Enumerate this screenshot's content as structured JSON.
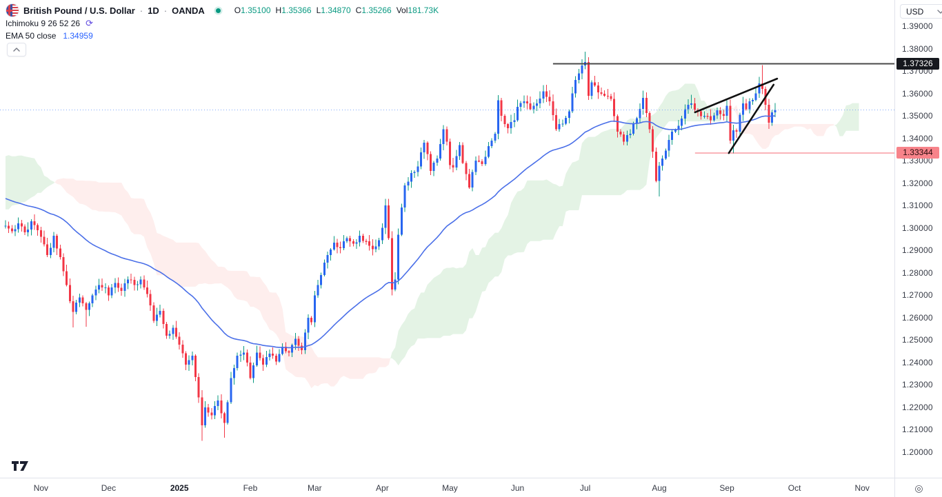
{
  "header": {
    "symbol_title": "British Pound / U.S. Dollar",
    "separator": "·",
    "timeframe": "1D",
    "exchange": "OANDA",
    "ohlc": {
      "o_label": "O",
      "o": "1.35100",
      "h_label": "H",
      "h": "1.35366",
      "l_label": "L",
      "l": "1.34870",
      "c_label": "C",
      "c": "1.35266",
      "vol_label": "Vol",
      "vol": "181.73K"
    },
    "indicators": [
      {
        "name": "Ichimoku 9 26 52 26"
      },
      {
        "name": "EMA 50 close",
        "value": "1.34959"
      }
    ]
  },
  "top_right": {
    "currency": "USD"
  },
  "bottom_right_icon": "◎",
  "colors": {
    "up_body": "#2765f0",
    "up_wick": "#089981",
    "down_body": "#f23645",
    "down_wick": "#f23645",
    "ema": "#4a6fe8",
    "cloud_bull": "rgba(76,175,80,0.15)",
    "cloud_bear": "rgba(244,67,54,0.09)",
    "last_price_line": "#7da6f9",
    "resistance_line": "#4a4a4a",
    "support_line": "rgba(242,54,69,0.5)",
    "trendline": "#111111",
    "accent_teal": "#089981",
    "accent_blue": "#2962FF"
  },
  "chart_data": {
    "type": "candlestick",
    "symbol": "GBPUSD",
    "timeframe": "1D",
    "ylim": [
      1.2,
      1.39
    ],
    "y_ticks": [
      {
        "label": "1.39000",
        "price": 1.39
      },
      {
        "label": "1.38000",
        "price": 1.38
      },
      {
        "label": "1.37000",
        "price": 1.37
      },
      {
        "label": "1.36000",
        "price": 1.36
      },
      {
        "label": "1.35000",
        "price": 1.35
      },
      {
        "label": "1.34000",
        "price": 1.34
      },
      {
        "label": "1.33000",
        "price": 1.33
      },
      {
        "label": "1.32000",
        "price": 1.32
      },
      {
        "label": "1.31000",
        "price": 1.31
      },
      {
        "label": "1.30000",
        "price": 1.3
      },
      {
        "label": "1.29000",
        "price": 1.29
      },
      {
        "label": "1.28000",
        "price": 1.28
      },
      {
        "label": "1.27000",
        "price": 1.27
      },
      {
        "label": "1.26000",
        "price": 1.26
      },
      {
        "label": "1.25000",
        "price": 1.25
      },
      {
        "label": "1.24000",
        "price": 1.24
      },
      {
        "label": "1.23000",
        "price": 1.23
      },
      {
        "label": "1.22000",
        "price": 1.22
      },
      {
        "label": "1.21000",
        "price": 1.21
      },
      {
        "label": "1.20000",
        "price": 1.2
      }
    ],
    "x_labels": [
      {
        "label": "Nov",
        "index": 11
      },
      {
        "label": "Dec",
        "index": 32
      },
      {
        "label": "2025",
        "index": 54,
        "bold": true
      },
      {
        "label": "Feb",
        "index": 76
      },
      {
        "label": "Mar",
        "index": 96
      },
      {
        "label": "Apr",
        "index": 117
      },
      {
        "label": "May",
        "index": 138
      },
      {
        "label": "Jun",
        "index": 159
      },
      {
        "label": "Jul",
        "index": 180
      },
      {
        "label": "Aug",
        "index": 203
      },
      {
        "label": "Sep",
        "index": 224
      },
      {
        "label": "Oct",
        "index": 245
      },
      {
        "label": "Nov",
        "index": 266
      }
    ],
    "bars_total": 240,
    "pre_anchors": [
      [
        -78,
        1.274
      ],
      [
        -70,
        1.284
      ],
      [
        -62,
        1.3
      ],
      [
        -55,
        1.312
      ],
      [
        -48,
        1.324
      ],
      [
        -42,
        1.3415
      ],
      [
        -36,
        1.332
      ],
      [
        -30,
        1.338
      ],
      [
        -24,
        1.326
      ],
      [
        -18,
        1.328
      ],
      [
        -12,
        1.308
      ],
      [
        -6,
        1.302
      ],
      [
        -1,
        1.301
      ]
    ],
    "anchors": [
      [
        0,
        1.301
      ],
      [
        2,
        1.2985
      ],
      [
        4,
        1.302
      ],
      [
        6,
        1.298
      ],
      [
        8,
        1.303
      ],
      [
        10,
        1.299
      ],
      [
        11,
        1.296
      ],
      [
        13,
        1.288
      ],
      [
        15,
        1.2965
      ],
      [
        17,
        1.287
      ],
      [
        19,
        1.2745
      ],
      [
        21,
        1.2625
      ],
      [
        23,
        1.269
      ],
      [
        25,
        1.2635
      ],
      [
        27,
        1.27
      ],
      [
        29,
        1.2745
      ],
      [
        31,
        1.2735
      ],
      [
        32,
        1.27
      ],
      [
        34,
        1.2755
      ],
      [
        36,
        1.272
      ],
      [
        38,
        1.277
      ],
      [
        40,
        1.2745
      ],
      [
        42,
        1.277
      ],
      [
        44,
        1.2705
      ],
      [
        46,
        1.2585
      ],
      [
        48,
        1.263
      ],
      [
        50,
        1.252
      ],
      [
        52,
        1.2555
      ],
      [
        53,
        1.2515
      ],
      [
        54,
        1.248
      ],
      [
        56,
        1.239
      ],
      [
        58,
        1.243
      ],
      [
        60,
        1.2245
      ],
      [
        61,
        1.212
      ],
      [
        62,
        1.22
      ],
      [
        64,
        1.2165
      ],
      [
        66,
        1.223
      ],
      [
        68,
        1.213
      ],
      [
        70,
        1.233
      ],
      [
        72,
        1.243
      ],
      [
        74,
        1.2445
      ],
      [
        75,
        1.24
      ],
      [
        76,
        1.233
      ],
      [
        78,
        1.2445
      ],
      [
        80,
        1.239
      ],
      [
        82,
        1.244
      ],
      [
        84,
        1.2405
      ],
      [
        86,
        1.247
      ],
      [
        88,
        1.2445
      ],
      [
        90,
        1.2505
      ],
      [
        92,
        1.2455
      ],
      [
        94,
        1.26
      ],
      [
        95,
        1.258
      ],
      [
        96,
        1.27
      ],
      [
        98,
        1.279
      ],
      [
        100,
        1.288
      ],
      [
        102,
        1.2935
      ],
      [
        104,
        1.291
      ],
      [
        106,
        1.2955
      ],
      [
        108,
        1.293
      ],
      [
        110,
        1.2965
      ],
      [
        112,
        1.294
      ],
      [
        114,
        1.2905
      ],
      [
        116,
        1.2945
      ],
      [
        117,
        1.3
      ],
      [
        118,
        1.31
      ],
      [
        119,
        1.2955
      ],
      [
        120,
        1.2725
      ],
      [
        121,
        1.277
      ],
      [
        122,
        1.297
      ],
      [
        124,
        1.319
      ],
      [
        126,
        1.3245
      ],
      [
        128,
        1.3275
      ],
      [
        130,
        1.338
      ],
      [
        131,
        1.333
      ],
      [
        132,
        1.3255
      ],
      [
        134,
        1.331
      ],
      [
        136,
        1.344
      ],
      [
        137,
        1.3385
      ],
      [
        138,
        1.328
      ],
      [
        139,
        1.327
      ],
      [
        141,
        1.337
      ],
      [
        142,
        1.329
      ],
      [
        143,
        1.324
      ],
      [
        144,
        1.318
      ],
      [
        146,
        1.33
      ],
      [
        148,
        1.3285
      ],
      [
        150,
        1.3365
      ],
      [
        152,
        1.342
      ],
      [
        153,
        1.357
      ],
      [
        154,
        1.35
      ],
      [
        156,
        1.3445
      ],
      [
        158,
        1.348
      ],
      [
        159,
        1.354
      ],
      [
        161,
        1.3565
      ],
      [
        163,
        1.353
      ],
      [
        165,
        1.3555
      ],
      [
        167,
        1.361
      ],
      [
        169,
        1.3565
      ],
      [
        171,
        1.344
      ],
      [
        173,
        1.3465
      ],
      [
        175,
        1.352
      ],
      [
        177,
        1.366
      ],
      [
        179,
        1.3725
      ],
      [
        180,
        1.374
      ],
      [
        181,
        1.359
      ],
      [
        182,
        1.365
      ],
      [
        184,
        1.3605
      ],
      [
        186,
        1.359
      ],
      [
        188,
        1.3575
      ],
      [
        190,
        1.343
      ],
      [
        192,
        1.3385
      ],
      [
        194,
        1.342
      ],
      [
        196,
        1.349
      ],
      [
        198,
        1.358
      ],
      [
        200,
        1.344
      ],
      [
        201,
        1.334
      ],
      [
        202,
        1.321
      ],
      [
        203,
        1.3278
      ],
      [
        205,
        1.3345
      ],
      [
        207,
        1.343
      ],
      [
        209,
        1.3455
      ],
      [
        211,
        1.353
      ],
      [
        213,
        1.3555
      ],
      [
        215,
        1.352
      ],
      [
        217,
        1.35
      ],
      [
        219,
        1.348
      ],
      [
        221,
        1.3525
      ],
      [
        223,
        1.35
      ],
      [
        224,
        1.3545
      ],
      [
        225,
        1.339
      ],
      [
        226,
        1.3435
      ],
      [
        227,
        1.343
      ],
      [
        228,
        1.3505
      ],
      [
        229,
        1.3555
      ],
      [
        230,
        1.353
      ],
      [
        231,
        1.3565
      ],
      [
        233,
        1.36
      ],
      [
        234,
        1.3645
      ],
      [
        235,
        1.362
      ],
      [
        236,
        1.355
      ],
      [
        237,
        1.347
      ],
      [
        238,
        1.3515
      ],
      [
        239,
        1.35266
      ]
    ],
    "wick_overrides": {
      "21": {
        "low": 1.2557
      },
      "25": {
        "low": 1.256
      },
      "61": {
        "low": 1.205
      },
      "68": {
        "low": 1.2065
      },
      "120": {
        "low": 1.27
      },
      "153": {
        "high": 1.3593
      },
      "180": {
        "high": 1.3787
      },
      "203": {
        "low": 1.3141
      },
      "213": {
        "high": 1.3594
      },
      "226": {
        "low": 1.3333
      },
      "235": {
        "high": 1.3726
      }
    },
    "key_levels": [
      {
        "price": 1.37326,
        "label": "1.37326",
        "style": "black",
        "from_index": 170
      },
      {
        "price": 1.33344,
        "label": "1.33344",
        "style": "red",
        "from_index": 214.1
      }
    ],
    "last_price": 1.35266,
    "trendlines": [
      {
        "i1": 214.1,
        "p1": 1.3516,
        "i2": 239.6,
        "p2": 1.3666
      },
      {
        "i1": 224.6,
        "p1": 1.3334,
        "i2": 238.5,
        "p2": 1.3639
      }
    ],
    "indicator_settings": {
      "ema_period": 50,
      "ichimoku": [
        9,
        26,
        52,
        26
      ]
    }
  }
}
